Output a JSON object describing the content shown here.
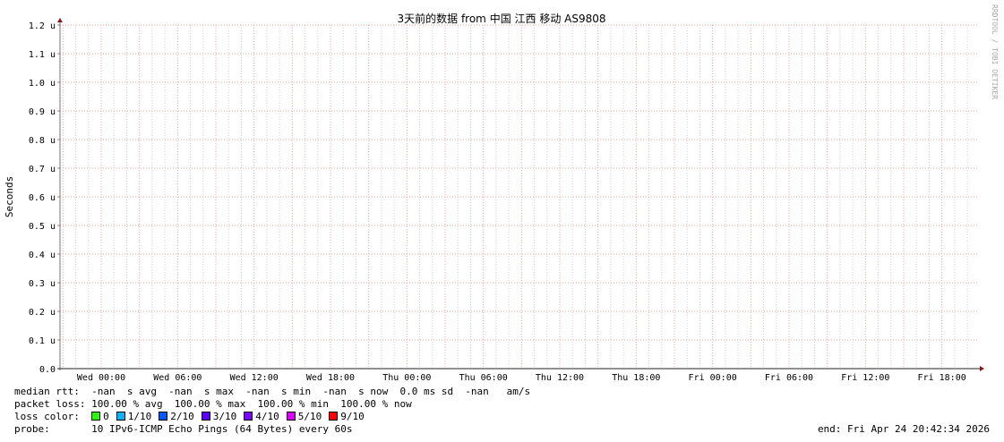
{
  "chart_data": {
    "type": "line",
    "title": "3天前的数据 from 中国 江西 移动 AS9808",
    "ylabel": "Seconds",
    "xlabel": "",
    "ylim": [
      0,
      1.2
    ],
    "y_unit": "u",
    "y_ticks": [
      "0.0",
      "0.1 u",
      "0.2 u",
      "0.3 u",
      "0.4 u",
      "0.5 u",
      "0.6 u",
      "0.7 u",
      "0.8 u",
      "0.9 u",
      "1.0 u",
      "1.1 u",
      "1.2 u"
    ],
    "x_ticks": [
      "Wed 00:00",
      "Wed 06:00",
      "Wed 12:00",
      "Wed 18:00",
      "Thu 00:00",
      "Thu 06:00",
      "Thu 12:00",
      "Thu 18:00",
      "Fri 00:00",
      "Fri 06:00",
      "Fri 12:00",
      "Fri 18:00"
    ],
    "grid": true,
    "series": [],
    "watermark": "RRDTOOL / TOBI OETIKER"
  },
  "legend": {
    "median_rtt": "median rtt:  -nan  s avg  -nan  s max  -nan  s min  -nan  s now  0.0 ms sd  -nan   am/s",
    "packet_loss": "packet loss: 100.00 % avg  100.00 % max  100.00 % min  100.00 % now",
    "loss_color_label": "loss color:  ",
    "loss_colors": [
      {
        "label": "0",
        "color": "#26ff00"
      },
      {
        "label": "1/10",
        "color": "#00b8ff"
      },
      {
        "label": "2/10",
        "color": "#0059ff"
      },
      {
        "label": "3/10",
        "color": "#5e00ff"
      },
      {
        "label": "4/10",
        "color": "#7e00ff"
      },
      {
        "label": "5/10",
        "color": "#dd00ff"
      },
      {
        "label": "9/10",
        "color": "#ff0000"
      }
    ],
    "probe": "probe:       10 IPv6-ICMP Echo Pings (64 Bytes) every 60s",
    "end": "end: Fri Apr 24 20:42:34 2026"
  }
}
